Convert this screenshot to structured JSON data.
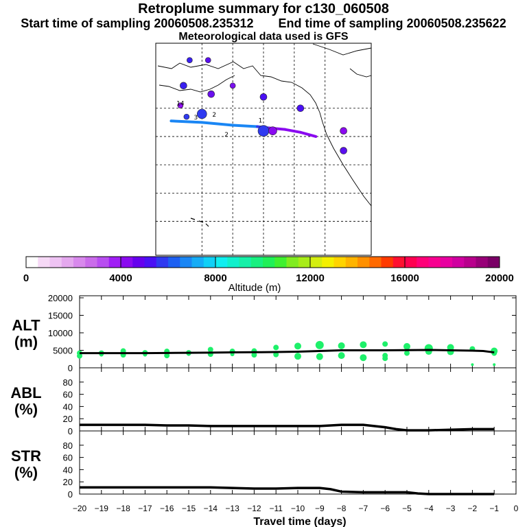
{
  "header": {
    "title": "Retroplume summary for c130_060508",
    "start_label": "Start time of sampling",
    "start_value": "20060508.235312",
    "end_label": "End time of sampling",
    "end_value": "20060508.235622",
    "met_label": "Meteorological data used is GFS"
  },
  "colorbar": {
    "label": "Altitude (m)",
    "ticks": [
      "0",
      "4000",
      "8000",
      "12000",
      "16000",
      "20000"
    ],
    "range": [
      0,
      20000
    ],
    "colors": [
      "#ffffff",
      "#f6d9f6",
      "#eec3f3",
      "#e4a8ee",
      "#d889ec",
      "#ca6cea",
      "#b84ef0",
      "#a01ef5",
      "#8a0af0",
      "#6600ee",
      "#4a10f4",
      "#2f3af0",
      "#1d60f2",
      "#1a86f4",
      "#16acf6",
      "#10d0f6",
      "#10eef0",
      "#10f0cc",
      "#16f0a8",
      "#18f080",
      "#20f058",
      "#40f030",
      "#80ec20",
      "#a8ec18",
      "#d4ee10",
      "#f4f000",
      "#ffd400",
      "#ffb400",
      "#ff9000",
      "#ff6a00",
      "#ff3a00",
      "#ff1030",
      "#ff0050",
      "#ff0078",
      "#f80090",
      "#e800a0",
      "#d000a0",
      "#b8008c",
      "#980078",
      "#7a0066"
    ]
  },
  "map": {
    "plume_path": [
      [
        -180,
        45.5
      ],
      [
        -170,
        45
      ],
      [
        -160,
        44
      ],
      [
        -152,
        43.5
      ],
      [
        -148,
        43
      ],
      [
        -143,
        42.5
      ],
      [
        -138,
        41.5
      ],
      [
        -133,
        40
      ]
    ],
    "path_colors": [
      "#1a86f4",
      "#1a86f4",
      "#1a86f4",
      "#2f3af0",
      "#8a0af0",
      "#8a0af0",
      "#8a0af0"
    ],
    "markers": [
      {
        "lon": -174,
        "lat": 67,
        "c": "#3a20f0",
        "s": 4
      },
      {
        "lon": -168,
        "lat": 67,
        "c": "#5a10ee",
        "s": 4
      },
      {
        "lon": -176,
        "lat": 58,
        "c": "#3a20f0",
        "s": 5
      },
      {
        "lon": -167,
        "lat": 55,
        "c": "#6a10ee",
        "s": 5
      },
      {
        "lon": -160,
        "lat": 58,
        "c": "#7a10ee",
        "s": 4
      },
      {
        "lon": -177,
        "lat": 51,
        "c": "#9010f0",
        "s": 4
      },
      {
        "lon": -170,
        "lat": 48,
        "c": "#2f3af0",
        "s": 7
      },
      {
        "lon": -175,
        "lat": 47,
        "c": "#2f3af0",
        "s": 4
      },
      {
        "lon": -150,
        "lat": 54,
        "c": "#4a10f4",
        "s": 5
      },
      {
        "lon": -150,
        "lat": 42,
        "c": "#2f3af0",
        "s": 8
      },
      {
        "lon": -147,
        "lat": 42,
        "c": "#8a0af0",
        "s": 6
      },
      {
        "lon": -138,
        "lat": 50,
        "c": "#4a10f4",
        "s": 5
      },
      {
        "lon": -124,
        "lat": 42,
        "c": "#8a0af0",
        "s": 5
      },
      {
        "lon": -124,
        "lat": 35,
        "c": "#5a10ee",
        "s": 5
      }
    ],
    "labels": [
      {
        "lon": -177,
        "lat": 51,
        "text": "14"
      },
      {
        "lon": -172,
        "lat": 46,
        "text": "3"
      },
      {
        "lon": -166,
        "lat": 47,
        "text": "2"
      },
      {
        "lon": -162,
        "lat": 40,
        "text": "2"
      },
      {
        "lon": -151,
        "lat": 45,
        "text": "1"
      }
    ]
  },
  "chart_data": [
    {
      "type": "scatter",
      "title": "ALT",
      "ylabel": "ALT",
      "yunit": "(m)",
      "ylim": [
        0,
        20000
      ],
      "yticks": [
        0,
        5000,
        10000,
        15000,
        20000
      ],
      "xlim": [
        -20,
        0
      ],
      "line": {
        "x": [
          -20,
          -19,
          -18,
          -17,
          -16,
          -15,
          -14,
          -13,
          -12,
          -11,
          -10,
          -9,
          -8,
          -7,
          -6,
          -5,
          -4,
          -3,
          -2,
          -1.5,
          -1
        ],
        "y": [
          4200,
          4200,
          4200,
          4200,
          4250,
          4300,
          4350,
          4400,
          4450,
          4500,
          4600,
          4800,
          5000,
          5000,
          5000,
          5050,
          5100,
          5000,
          4900,
          4800,
          4400
        ]
      },
      "points": [
        {
          "x": -20,
          "y": 4200,
          "r": 4
        },
        {
          "x": -20,
          "y": 3400,
          "r": 4
        },
        {
          "x": -19,
          "y": 4200,
          "r": 4
        },
        {
          "x": -19,
          "y": 3800,
          "r": 3
        },
        {
          "x": -18,
          "y": 4800,
          "r": 4
        },
        {
          "x": -18,
          "y": 3700,
          "r": 4
        },
        {
          "x": -17,
          "y": 4300,
          "r": 4
        },
        {
          "x": -17,
          "y": 3800,
          "r": 3
        },
        {
          "x": -16,
          "y": 4700,
          "r": 4
        },
        {
          "x": -16,
          "y": 3500,
          "r": 4
        },
        {
          "x": -15,
          "y": 4300,
          "r": 4
        },
        {
          "x": -15,
          "y": 4000,
          "r": 3
        },
        {
          "x": -14,
          "y": 5200,
          "r": 4
        },
        {
          "x": -14,
          "y": 3900,
          "r": 4
        },
        {
          "x": -13,
          "y": 4700,
          "r": 4
        },
        {
          "x": -13,
          "y": 3900,
          "r": 3
        },
        {
          "x": -12,
          "y": 4800,
          "r": 4
        },
        {
          "x": -12,
          "y": 3700,
          "r": 4
        },
        {
          "x": -11,
          "y": 5800,
          "r": 4
        },
        {
          "x": -11,
          "y": 3800,
          "r": 4
        },
        {
          "x": -10,
          "y": 6200,
          "r": 5
        },
        {
          "x": -10,
          "y": 3300,
          "r": 5
        },
        {
          "x": -9,
          "y": 6500,
          "r": 6
        },
        {
          "x": -9,
          "y": 3200,
          "r": 5
        },
        {
          "x": -8,
          "y": 6300,
          "r": 5
        },
        {
          "x": -8,
          "y": 3500,
          "r": 5
        },
        {
          "x": -7,
          "y": 6600,
          "r": 5
        },
        {
          "x": -7,
          "y": 2900,
          "r": 5
        },
        {
          "x": -6,
          "y": 6800,
          "r": 4
        },
        {
          "x": -6,
          "y": 3500,
          "r": 4
        },
        {
          "x": -6,
          "y": 2700,
          "r": 4
        },
        {
          "x": -5,
          "y": 6100,
          "r": 5
        },
        {
          "x": -5,
          "y": 4200,
          "r": 4
        },
        {
          "x": -4,
          "y": 5600,
          "r": 6
        },
        {
          "x": -4,
          "y": 4700,
          "r": 5
        },
        {
          "x": -3,
          "y": 5800,
          "r": 5
        },
        {
          "x": -3,
          "y": 4600,
          "r": 5
        },
        {
          "x": -2,
          "y": 5400,
          "r": 4
        },
        {
          "x": -2,
          "y": 900,
          "r": 2
        },
        {
          "x": -1,
          "y": 4800,
          "r": 5
        },
        {
          "x": -1,
          "y": 4200,
          "r": 4
        },
        {
          "x": -1,
          "y": 900,
          "r": 2
        }
      ],
      "color": "#1ef06a"
    },
    {
      "type": "line",
      "ylabel": "ABL",
      "yunit": "(%)",
      "ylim": [
        0,
        100
      ],
      "yticks": [
        0,
        20,
        40,
        60,
        80
      ],
      "xlim": [
        -20,
        0
      ],
      "x": [
        -20,
        -19,
        -18,
        -17,
        -16,
        -15,
        -14,
        -13,
        -12,
        -11,
        -10,
        -9,
        -8,
        -7,
        -6.5,
        -6,
        -5.5,
        -5,
        -4,
        -3,
        -2,
        -1
      ],
      "y": [
        10,
        10,
        10,
        10,
        9,
        9,
        8,
        8,
        8,
        8,
        8,
        8,
        10,
        10,
        8,
        6,
        3,
        1,
        1,
        2,
        3,
        3
      ]
    },
    {
      "type": "line",
      "ylabel": "STR",
      "yunit": "(%)",
      "ylim": [
        0,
        100
      ],
      "yticks": [
        0,
        20,
        40,
        60,
        80
      ],
      "xlim": [
        -20,
        0
      ],
      "x": [
        -20,
        -19,
        -18,
        -17,
        -16,
        -15,
        -14,
        -13,
        -12,
        -11,
        -10,
        -9,
        -8.5,
        -8,
        -7,
        -6,
        -5,
        -4.5,
        -4,
        -3,
        -2,
        -1
      ],
      "y": [
        11,
        11,
        11,
        11,
        11,
        11,
        11,
        10,
        9,
        9,
        10,
        10,
        8,
        4,
        3,
        3,
        3,
        1,
        0,
        0,
        0,
        0
      ]
    }
  ],
  "xaxis": {
    "label": "Travel time (days)",
    "ticks": [
      -20,
      -19,
      -18,
      -17,
      -16,
      -15,
      -14,
      -13,
      -12,
      -11,
      -10,
      -9,
      -8,
      -7,
      -6,
      -5,
      -4,
      -3,
      -2,
      -1,
      0
    ]
  }
}
